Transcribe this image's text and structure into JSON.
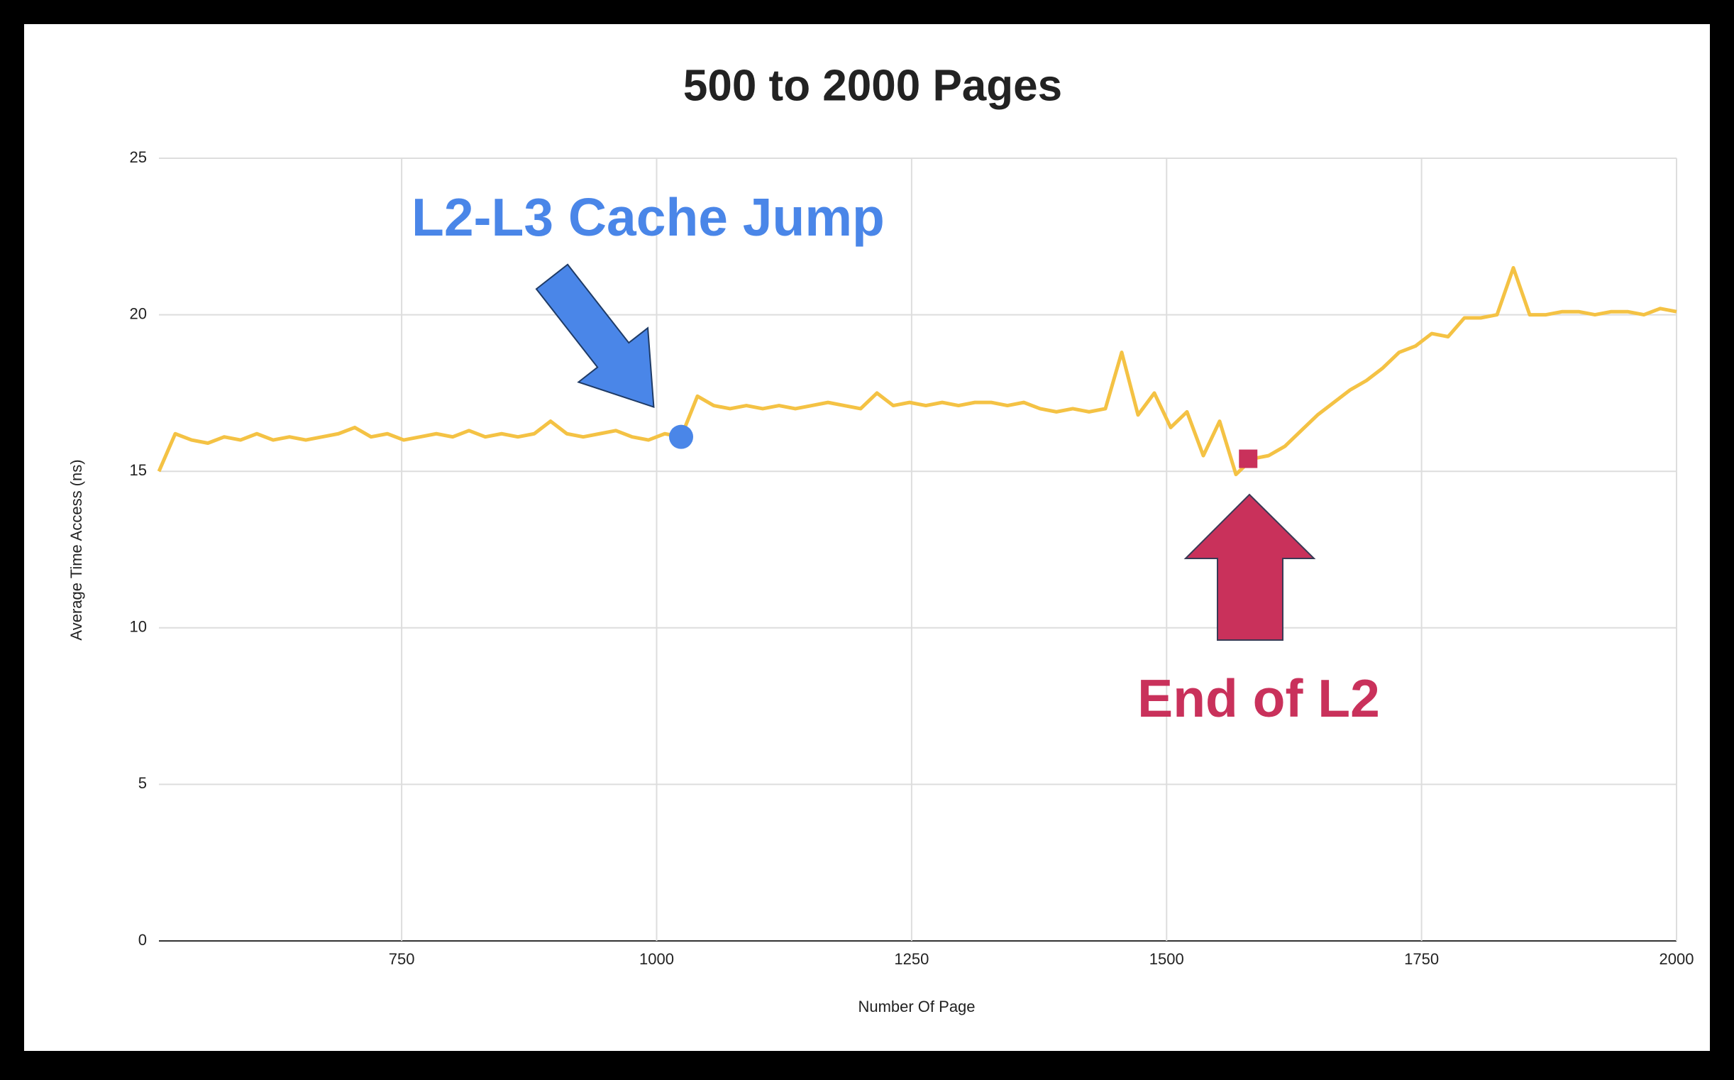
{
  "chart_data": {
    "type": "line",
    "title": "500 to 2000 Pages",
    "x_label": "Number Of Page",
    "y_label": "Average Time Access (ns)",
    "x": [
      512,
      528,
      544,
      560,
      576,
      592,
      608,
      624,
      640,
      656,
      672,
      688,
      704,
      720,
      736,
      752,
      768,
      784,
      800,
      816,
      832,
      848,
      864,
      880,
      896,
      912,
      928,
      944,
      960,
      976,
      992,
      1008,
      1024,
      1040,
      1056,
      1072,
      1088,
      1104,
      1120,
      1136,
      1152,
      1168,
      1184,
      1200,
      1216,
      1232,
      1248,
      1264,
      1280,
      1296,
      1312,
      1328,
      1344,
      1360,
      1376,
      1392,
      1408,
      1424,
      1440,
      1456,
      1472,
      1488,
      1504,
      1520,
      1536,
      1552,
      1568,
      1584,
      1600,
      1616,
      1632,
      1648,
      1664,
      1680,
      1696,
      1712,
      1728,
      1744,
      1760,
      1776,
      1792,
      1808,
      1824,
      1840,
      1856,
      1872,
      1888,
      1904,
      1920,
      1936,
      1952,
      1968,
      1984,
      2000
    ],
    "values": [
      15.0,
      16.2,
      16.0,
      15.9,
      16.1,
      16.0,
      16.2,
      16.0,
      16.1,
      16.0,
      16.1,
      16.2,
      16.4,
      16.1,
      16.2,
      16.0,
      16.1,
      16.2,
      16.1,
      16.3,
      16.1,
      16.2,
      16.1,
      16.2,
      16.6,
      16.2,
      16.1,
      16.2,
      16.3,
      16.1,
      16.0,
      16.2,
      16.1,
      17.4,
      17.1,
      17.0,
      17.1,
      17.0,
      17.1,
      17.0,
      17.1,
      17.2,
      17.1,
      17.0,
      17.5,
      17.1,
      17.2,
      17.1,
      17.2,
      17.1,
      17.2,
      17.2,
      17.1,
      17.2,
      17.0,
      16.9,
      17.0,
      16.9,
      17.0,
      18.8,
      16.8,
      17.5,
      16.4,
      16.9,
      15.5,
      16.6,
      14.9,
      15.4,
      15.5,
      15.8,
      16.3,
      16.8,
      17.2,
      17.6,
      17.9,
      18.3,
      18.8,
      19.0,
      19.4,
      19.3,
      19.9,
      19.9,
      20.0,
      21.5,
      20.0,
      20.0,
      20.1,
      20.1,
      20.0,
      20.1,
      20.1,
      20.0,
      20.2,
      20.1
    ],
    "color": "#f4c244",
    "xlim": [
      512,
      2000
    ],
    "xticks": [
      750,
      1000,
      1250,
      1500,
      1750,
      2000
    ],
    "ylim": [
      0,
      25
    ],
    "yticks": [
      0,
      5,
      10,
      15,
      20,
      25
    ],
    "grid": true,
    "annotations": [
      {
        "text": "L2-L3 Cache Jump",
        "x": 1024,
        "y": 16.1,
        "color": "#4a86e8",
        "marker": "circle"
      },
      {
        "text": "End of L2",
        "x": 1580,
        "y": 15.4,
        "color": "#c9315b",
        "marker": "square"
      }
    ]
  }
}
